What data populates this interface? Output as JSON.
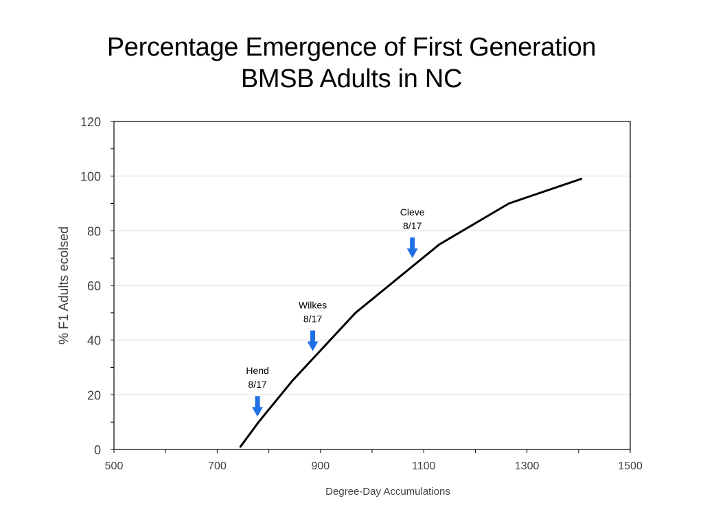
{
  "title_lines": [
    "Percentage Emergence of First Generation",
    "BMSB Adults in NC"
  ],
  "chart_data": {
    "type": "line",
    "title": "Percentage Emergence of First Generation BMSB Adults in NC",
    "xlabel": "Degree-Day Accumulations",
    "ylabel": "% F1 Adults ecolsed",
    "xlim": [
      500,
      1500
    ],
    "ylim": [
      0,
      120
    ],
    "xticks": [
      500,
      700,
      900,
      1100,
      1300,
      1500
    ],
    "yticks": [
      0,
      20,
      40,
      60,
      80,
      100,
      120
    ],
    "grid": "horizontal",
    "series": [
      {
        "x": [
          745,
          780,
          845,
          968,
          1130,
          1265,
          1405
        ],
        "y": [
          1,
          10,
          25,
          50,
          75,
          90,
          99
        ],
        "color": "#000000"
      }
    ],
    "annotations": [
      {
        "lines": [
          "Hend",
          "8/17"
        ],
        "x": 778,
        "y_tip": 12
      },
      {
        "lines": [
          "Wilkes",
          "8/17"
        ],
        "x": 885,
        "y_tip": 36
      },
      {
        "lines": [
          "Cleve",
          "8/17"
        ],
        "x": 1078,
        "y_tip": 70
      }
    ],
    "arrow_color": "#1f6fe6"
  }
}
